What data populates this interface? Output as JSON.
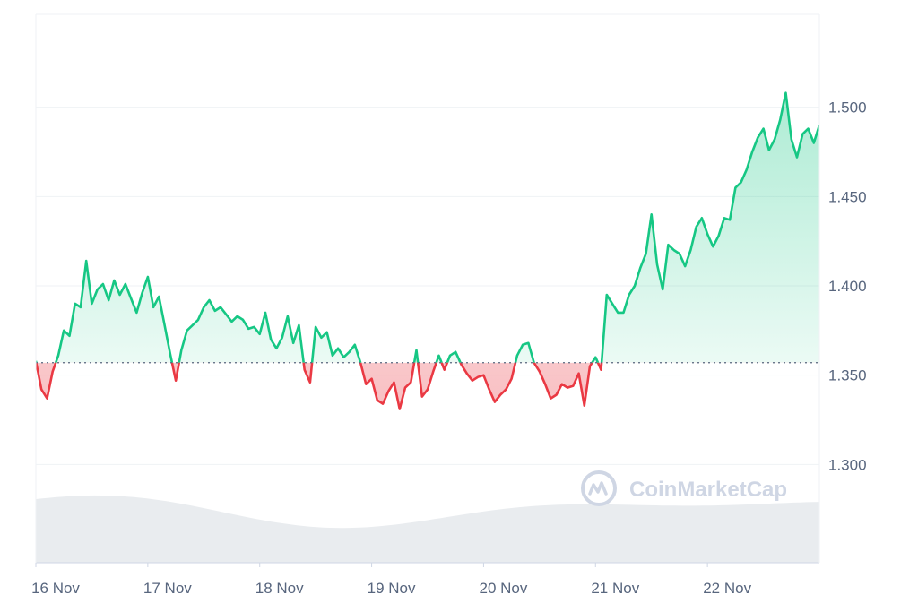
{
  "chart_data": {
    "type": "area",
    "title": "",
    "xlabel": "",
    "ylabel": "",
    "x_tick_labels": [
      "16 Nov",
      "17 Nov",
      "18 Nov",
      "19 Nov",
      "20 Nov",
      "21 Nov",
      "22 Nov"
    ],
    "y_tick_values": [
      1.3,
      1.35,
      1.4,
      1.45,
      1.5
    ],
    "y_tick_labels": [
      "1.300",
      "1.350",
      "1.400",
      "1.450",
      "1.500"
    ],
    "ylim": [
      1.245,
      1.552
    ],
    "xlim_days": [
      16.0,
      23.0
    ],
    "baseline_value": 1.357,
    "grid": "horizontal",
    "colors": {
      "up": "#16c784",
      "up_fill": "#16c784",
      "down": "#ea3943",
      "down_fill": "#ea3943",
      "baseline": "#58667e",
      "volume": "#e9ecef",
      "grid": "#eff2f5",
      "axis": "#cfd6e4",
      "watermark": "#cfd6e4"
    },
    "series": [
      {
        "x": [
          16.0,
          16.05,
          16.1,
          16.15,
          16.2,
          16.25,
          16.3,
          16.35,
          16.4,
          16.45,
          16.5,
          16.55,
          16.6,
          16.65,
          16.7,
          16.75,
          16.8,
          16.85,
          16.9,
          16.95,
          17.0,
          17.05,
          17.1,
          17.15,
          17.2,
          17.25,
          17.3,
          17.35,
          17.4,
          17.45,
          17.5,
          17.55,
          17.6,
          17.65,
          17.7,
          17.75,
          17.8,
          17.85,
          17.9,
          17.95,
          18.0,
          18.05,
          18.1,
          18.15,
          18.2,
          18.25,
          18.3,
          18.35,
          18.4,
          18.45,
          18.5,
          18.55,
          18.6,
          18.65,
          18.7,
          18.75,
          18.8,
          18.85,
          18.9,
          18.95,
          19.0,
          19.05,
          19.1,
          19.15,
          19.2,
          19.25,
          19.3,
          19.35,
          19.4,
          19.45,
          19.5,
          19.55,
          19.6,
          19.65,
          19.7,
          19.75,
          19.8,
          19.85,
          19.9,
          19.95,
          20.0,
          20.05,
          20.1,
          20.15,
          20.2,
          20.25,
          20.3,
          20.35,
          20.4,
          20.45,
          20.5,
          20.55,
          20.6,
          20.65,
          20.7,
          20.75,
          20.8,
          20.85,
          20.9,
          20.95,
          21.0,
          21.05,
          21.1,
          21.15,
          21.2,
          21.25,
          21.3,
          21.35,
          21.4,
          21.45,
          21.5,
          21.55,
          21.6,
          21.65,
          21.7,
          21.75,
          21.8,
          21.85,
          21.9,
          21.95,
          22.0,
          22.05,
          22.1,
          22.15,
          22.2,
          22.25,
          22.3,
          22.35,
          22.4,
          22.45,
          22.5,
          22.55,
          22.6,
          22.65,
          22.7,
          22.75,
          22.8,
          22.85,
          22.9,
          22.95,
          23.0
        ],
        "values": [
          1.358,
          1.342,
          1.337,
          1.352,
          1.361,
          1.375,
          1.372,
          1.39,
          1.388,
          1.414,
          1.39,
          1.398,
          1.401,
          1.392,
          1.403,
          1.395,
          1.401,
          1.393,
          1.385,
          1.396,
          1.405,
          1.388,
          1.394,
          1.378,
          1.362,
          1.347,
          1.364,
          1.375,
          1.378,
          1.381,
          1.388,
          1.392,
          1.386,
          1.388,
          1.384,
          1.38,
          1.383,
          1.381,
          1.376,
          1.377,
          1.373,
          1.385,
          1.37,
          1.365,
          1.371,
          1.383,
          1.368,
          1.378,
          1.353,
          1.346,
          1.377,
          1.371,
          1.374,
          1.361,
          1.365,
          1.36,
          1.363,
          1.367,
          1.357,
          1.345,
          1.348,
          1.336,
          1.334,
          1.341,
          1.346,
          1.331,
          1.343,
          1.346,
          1.364,
          1.338,
          1.342,
          1.352,
          1.361,
          1.353,
          1.361,
          1.363,
          1.356,
          1.351,
          1.347,
          1.349,
          1.35,
          1.342,
          1.335,
          1.339,
          1.342,
          1.348,
          1.361,
          1.367,
          1.368,
          1.357,
          1.352,
          1.345,
          1.337,
          1.339,
          1.345,
          1.343,
          1.344,
          1.351,
          1.333,
          1.355,
          1.36,
          1.353,
          1.395,
          1.39,
          1.385,
          1.385,
          1.395,
          1.4,
          1.41,
          1.418,
          1.44,
          1.412,
          1.398,
          1.423,
          1.42,
          1.418,
          1.411,
          1.42,
          1.433,
          1.438,
          1.429,
          1.422,
          1.428,
          1.438,
          1.437,
          1.455,
          1.458,
          1.465,
          1.475,
          1.483,
          1.488,
          1.476,
          1.482,
          1.493,
          1.508,
          1.482,
          1.472,
          1.485,
          1.488,
          1.48,
          1.49
        ]
      }
    ]
  },
  "watermark": {
    "text": "CoinMarketCap",
    "icon": "coinmarketcap-logo-icon"
  }
}
